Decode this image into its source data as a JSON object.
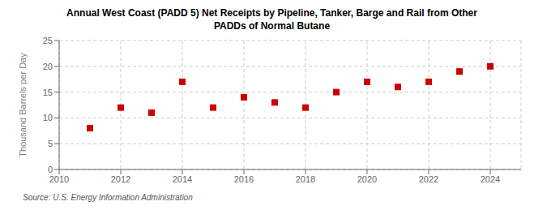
{
  "chart_data": {
    "type": "scatter",
    "title": "Annual West Coast (PADD 5) Net Receipts by Pipeline, Tanker, Barge and Rail from Other\nPADDs of Normal Butane",
    "y_label": "Thousand Barrels per Day",
    "annotations": [
      "Source: U.S. Energy Information Administration"
    ],
    "x": [
      2011,
      2012,
      2013,
      2014,
      2015,
      2016,
      2017,
      2018,
      2019,
      2020,
      2021,
      2022,
      2023,
      2024
    ],
    "values": [
      8,
      12,
      11,
      17,
      12,
      14,
      13,
      12,
      15,
      17,
      16,
      17,
      19,
      20
    ],
    "color": "#cc0000",
    "marker": "square",
    "xlim": [
      2010,
      2025
    ],
    "ylim": [
      0,
      25
    ],
    "xticks": [
      2010,
      2012,
      2014,
      2016,
      2018,
      2020,
      2022,
      2024
    ],
    "yticks": [
      0,
      5,
      10,
      15,
      20,
      25
    ],
    "grid": true
  }
}
